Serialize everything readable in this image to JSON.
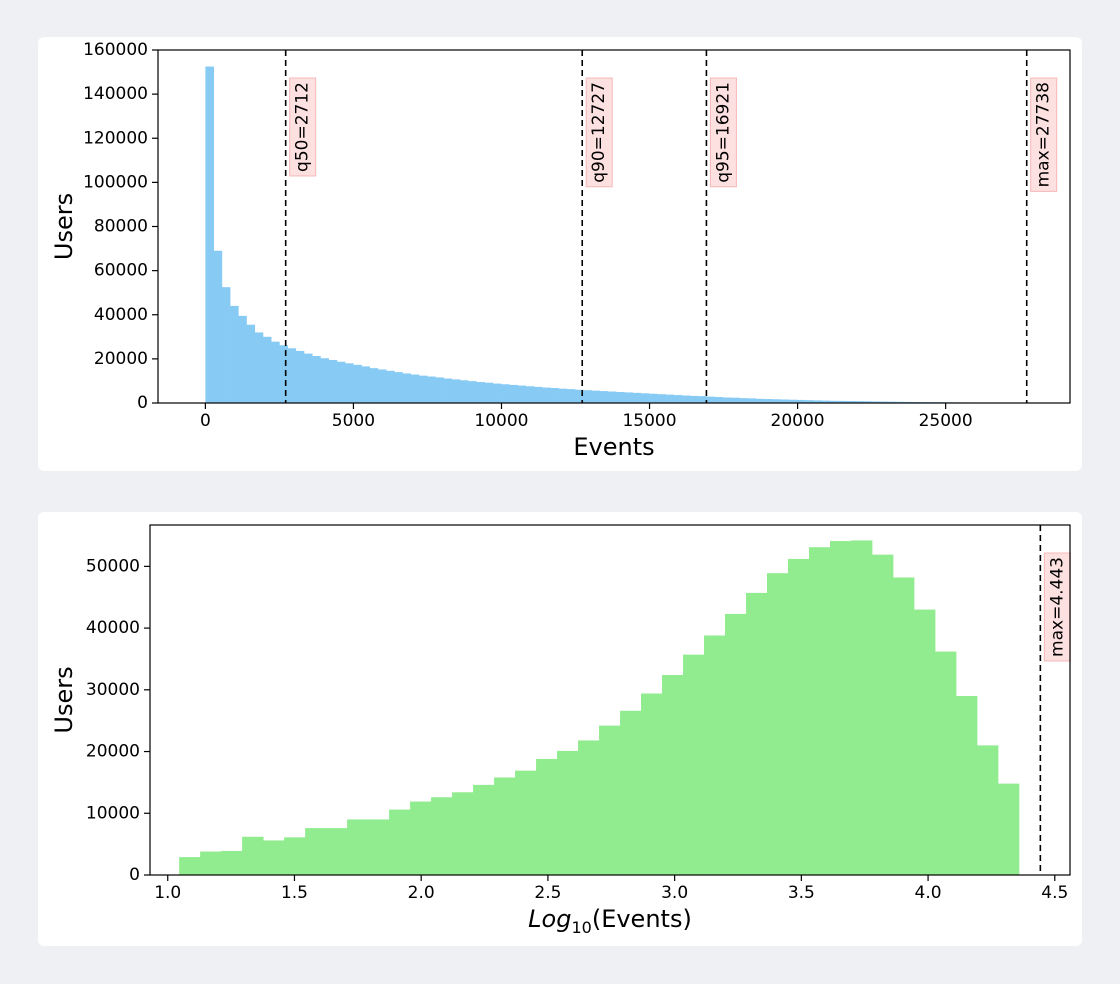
{
  "colors": {
    "background": "#eef0f4",
    "card": "#ffffff",
    "hist1": "#87cbf5",
    "hist2": "#90ec8e",
    "annotation_bg": "#fde0e0",
    "annotation_border": "#f6b8b8"
  },
  "chart_data": [
    {
      "type": "bar",
      "subtype": "histogram",
      "xlabel": "Events",
      "ylabel": "Users",
      "xlim": [
        -1600,
        29200
      ],
      "ylim": [
        0,
        160000
      ],
      "xticks": [
        0,
        5000,
        10000,
        15000,
        20000,
        25000
      ],
      "xtick_labels": [
        "0",
        "5000",
        "10000",
        "15000",
        "20000",
        "25000"
      ],
      "yticks": [
        0,
        20000,
        40000,
        60000,
        80000,
        100000,
        120000,
        140000,
        160000
      ],
      "ytick_labels": [
        "0",
        "20000",
        "40000",
        "60000",
        "80000",
        "100000",
        "120000",
        "140000",
        "160000"
      ],
      "bin_start": 0,
      "bin_width": 277.38,
      "values": [
        152500,
        69000,
        52500,
        44000,
        39500,
        35500,
        32000,
        30000,
        27800,
        26200,
        24800,
        23600,
        22400,
        21300,
        20300,
        19500,
        18700,
        18000,
        17300,
        16600,
        15800,
        15200,
        14600,
        14000,
        13400,
        12900,
        12400,
        12000,
        11600,
        11100,
        10700,
        10300,
        9900,
        9500,
        9200,
        8800,
        8500,
        8200,
        7900,
        7600,
        7300,
        7000,
        6800,
        6500,
        6300,
        6000,
        5800,
        5600,
        5400,
        5200,
        5000,
        4800,
        4600,
        4400,
        4200,
        4000,
        3800,
        3600,
        3400,
        3200,
        3100,
        2900,
        2700,
        2500,
        2400,
        2200,
        2100,
        1900,
        1800,
        1700,
        1600,
        1500,
        1400,
        1300,
        1200,
        1100,
        1000,
        950,
        900,
        850,
        800,
        700,
        650,
        600,
        550,
        500,
        450,
        400,
        380,
        350,
        320,
        290,
        260,
        230,
        200,
        170,
        140,
        110,
        80,
        50
      ],
      "color": "#87cbf5",
      "vlines": [
        {
          "x": 2712,
          "label": "q50=2712"
        },
        {
          "x": 12727,
          "label": "q90=12727"
        },
        {
          "x": 16921,
          "label": "q95=16921"
        },
        {
          "x": 27738,
          "label": "max=27738"
        }
      ],
      "grid": false
    },
    {
      "type": "bar",
      "subtype": "histogram",
      "xlabel_prefix": "Log",
      "xlabel_sub": "10",
      "xlabel_suffix": "(Events)",
      "ylabel": "Users",
      "xlim": [
        0.93,
        4.56
      ],
      "ylim": [
        0,
        56700
      ],
      "xticks": [
        1.0,
        1.5,
        2.0,
        2.5,
        3.0,
        3.5,
        4.0,
        4.5
      ],
      "xtick_labels": [
        "1.0",
        "1.5",
        "2.0",
        "2.5",
        "3.0",
        "3.5",
        "4.0",
        "4.5"
      ],
      "yticks": [
        0,
        10000,
        20000,
        30000,
        40000,
        50000
      ],
      "ytick_labels": [
        "0",
        "10000",
        "20000",
        "30000",
        "40000",
        "50000"
      ],
      "bin_start": 1.045,
      "bin_width": 0.08284,
      "values": [
        2900,
        3800,
        3900,
        6200,
        5600,
        6100,
        7600,
        7600,
        9000,
        9000,
        10600,
        11900,
        12600,
        13400,
        14600,
        15800,
        16900,
        18800,
        20100,
        21800,
        24200,
        26600,
        29400,
        32400,
        35700,
        38800,
        42300,
        45700,
        48900,
        51200,
        53100,
        54100,
        54200,
        51900,
        48200,
        43000,
        36200,
        29000,
        21000,
        14800
      ],
      "color": "#90ec8e",
      "vlines": [
        {
          "x": 4.443,
          "label": "max=4.443"
        }
      ],
      "grid": false
    }
  ]
}
